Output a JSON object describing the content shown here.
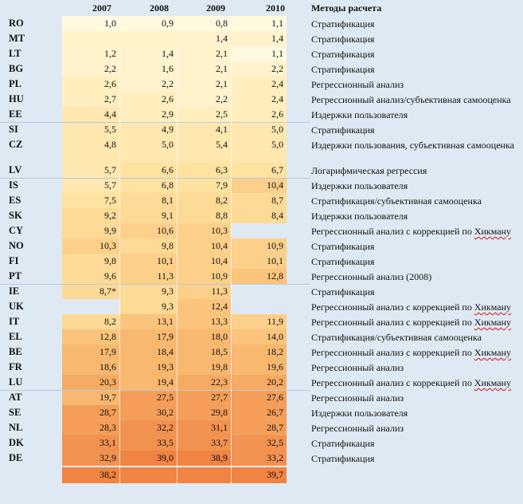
{
  "headers": {
    "y2007": "2007",
    "y2008": "2008",
    "y2009": "2009",
    "y2010": "2010",
    "methods": "Методы расчета"
  },
  "rows": [
    {
      "c": "RO",
      "v": [
        "1,0",
        "0,9",
        "0,8",
        "1,1"
      ],
      "m": "Стратификация"
    },
    {
      "c": "MT",
      "v": [
        "",
        "",
        "1,4",
        "1,4"
      ],
      "m": "Стратификация"
    },
    {
      "c": "LT",
      "v": [
        "1,2",
        "1,4",
        "2,1",
        "1,1"
      ],
      "m": "Стратификация"
    },
    {
      "c": "BG",
      "v": [
        "2,2",
        "1,6",
        "2,1",
        "2,2"
      ],
      "m": "Стратификация"
    },
    {
      "c": "PL",
      "v": [
        "2,6",
        "2,2",
        "2,1",
        "2,4"
      ],
      "m": "Регрессионный анализ"
    },
    {
      "c": "HU",
      "v": [
        "2,7",
        "2,6",
        "2,2",
        "2,4"
      ],
      "m": "Регрессионный анализ/субъективная  самооценка"
    },
    {
      "c": "EE",
      "v": [
        "4,4",
        "2,9",
        "2,5",
        "2,6"
      ],
      "m": "Издержки пользователя"
    },
    {
      "c": "SI",
      "v": [
        "5,5",
        "4,9",
        "4,1",
        "5,0"
      ],
      "m": "Стратификация"
    },
    {
      "c": "CZ",
      "v": [
        "4,8",
        "5,0",
        "5,4",
        "5,0"
      ],
      "m": "Издержки пользования, субъективная самооценка"
    },
    {
      "c": "LV",
      "v": [
        "5,7",
        "6,6",
        "6,3",
        "6,7"
      ],
      "m": "Логарифмическая регрессия"
    },
    {
      "c": "IS",
      "v": [
        "5,7",
        "6,8",
        "7,9",
        "10,4"
      ],
      "m": "Издержки пользователя"
    },
    {
      "c": "ES",
      "v": [
        "7,5",
        "8,1",
        "8,2",
        "8,7"
      ],
      "m": "Стратификация/субъективная  самооценка"
    },
    {
      "c": "SK",
      "v": [
        "9,2",
        "9,1",
        "8,8",
        "8,4"
      ],
      "m": "Издержки пользователя"
    },
    {
      "c": "CY",
      "v": [
        "9,9",
        "10,6",
        "10,3",
        ""
      ],
      "m": "Регрессионный анализ с коррекцией по ",
      "mh": "Хикману"
    },
    {
      "c": "NO",
      "v": [
        "10,3",
        "9,8",
        "10,4",
        "10,9"
      ],
      "m": "Стратификация"
    },
    {
      "c": "FI",
      "v": [
        "9,8",
        "10,1",
        "10,4",
        "10,1"
      ],
      "m": "Стратификация"
    },
    {
      "c": "PT",
      "v": [
        "9,6",
        "11,3",
        "10,9",
        "12,8"
      ],
      "m": "Регрессионный анализ (2008)"
    },
    {
      "c": "IE",
      "v": [
        "8,7*",
        "9,3",
        "11,3",
        ""
      ],
      "m": "Стратификация"
    },
    {
      "c": "UK",
      "v": [
        "",
        "9,3",
        "12,4",
        ""
      ],
      "m": "Регрессионный анализ с коррекцией по ",
      "mh": "Хикману"
    },
    {
      "c": "IT",
      "v": [
        "8,2",
        "13,1",
        "13,3",
        "11,9"
      ],
      "m": "Регрессионный анализ с коррекцией по ",
      "mh": "Хикману"
    },
    {
      "c": "EL",
      "v": [
        "12,8",
        "17,9",
        "18,0",
        "14,0"
      ],
      "m": "Стратификация/субъективная  самооценка"
    },
    {
      "c": "BE",
      "v": [
        "17,9",
        "18,4",
        "18,5",
        "18,2"
      ],
      "m": "Регрессионный анализ с коррекцией по ",
      "mh": "Хикману"
    },
    {
      "c": "FR",
      "v": [
        "18,6",
        "19,3",
        "19,8",
        "19,6"
      ],
      "m": "Регрессионный анализ"
    },
    {
      "c": "LU",
      "v": [
        "20,3",
        "19,4",
        "22,3",
        "20,2"
      ],
      "m": "Регрессионный анализ с коррекцией по ",
      "mh": "Хикману"
    },
    {
      "c": "AT",
      "v": [
        "19,7",
        "27,5",
        "27,7",
        "27,6"
      ],
      "m": "Регрессионный анализ"
    },
    {
      "c": "SE",
      "v": [
        "28,7",
        "30,2",
        "29,8",
        "26,7"
      ],
      "m": "Издержки пользователя"
    },
    {
      "c": "NL",
      "v": [
        "28,3",
        "32,2",
        "31,1",
        "28,7"
      ],
      "m": "Регрессионный анализ"
    },
    {
      "c": "DK",
      "v": [
        "33,1",
        "33,5",
        "33,7",
        "32,5"
      ],
      "m": "Стратификация"
    },
    {
      "c": "DE",
      "v": [
        "32,9",
        "39,0",
        "38,9",
        "33,2"
      ],
      "m": "Стратификация"
    },
    {
      "c": "",
      "v": [
        "38,2",
        "",
        "",
        "39,7"
      ],
      "m": ""
    }
  ]
}
